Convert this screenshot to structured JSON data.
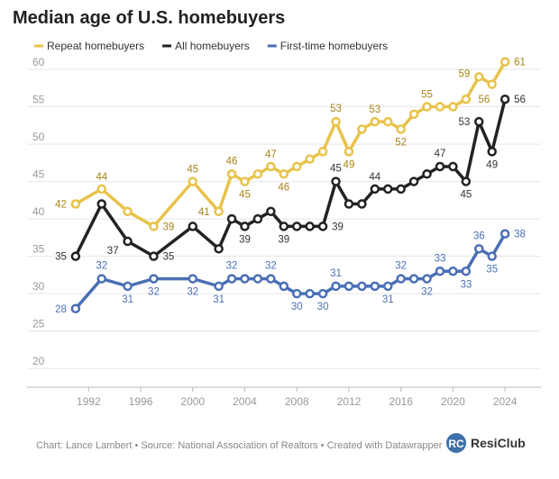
{
  "chart_data": {
    "type": "line",
    "title": "Median age of U.S. homebuyers",
    "source": "Chart: Lance Lambert • Source: National Association of Realtors • Created with Datawrapper",
    "brand": "ResiClub",
    "x": [
      1991,
      1993,
      1995,
      1997,
      2000,
      2002,
      2003,
      2004,
      2005,
      2006,
      2007,
      2008,
      2009,
      2010,
      2011,
      2012,
      2013,
      2014,
      2015,
      2016,
      2017,
      2018,
      2019,
      2020,
      2021,
      2022,
      2023,
      2024
    ],
    "series": [
      {
        "name": "Repeat homebuyers",
        "color": "#e8c34a",
        "label_color": "#a88418",
        "values": [
          42,
          44,
          41,
          39,
          45,
          41,
          46,
          45,
          46,
          47,
          46,
          47,
          48,
          49,
          53,
          49,
          52,
          53,
          53,
          52,
          54,
          55,
          55,
          55,
          56,
          59,
          58,
          61
        ]
      },
      {
        "name": "All homebuyers",
        "color": "#222222",
        "label_color": "#333333",
        "values": [
          35,
          42,
          37,
          35,
          39,
          36,
          40,
          39,
          40,
          41,
          39,
          39,
          39,
          39,
          45,
          42,
          42,
          44,
          44,
          44,
          45,
          46,
          47,
          47,
          45,
          53,
          49,
          56
        ]
      },
      {
        "name": "First-time homebuyers",
        "color": "#4a6fb5",
        "label_color": "#4a6fb5",
        "values": [
          28,
          32,
          31,
          32,
          32,
          31,
          32,
          32,
          32,
          32,
          31,
          30,
          30,
          30,
          31,
          31,
          31,
          31,
          31,
          32,
          32,
          32,
          33,
          33,
          33,
          36,
          35,
          38
        ]
      }
    ],
    "xlim": [
      1989,
      2026
    ],
    "xticks": [
      1992,
      1996,
      2000,
      2004,
      2008,
      2012,
      2016,
      2020,
      2024
    ],
    "ylim": [
      17.5,
      62
    ],
    "yticks": [
      20,
      25,
      30,
      35,
      40,
      45,
      50,
      55,
      60
    ],
    "grid": true
  }
}
